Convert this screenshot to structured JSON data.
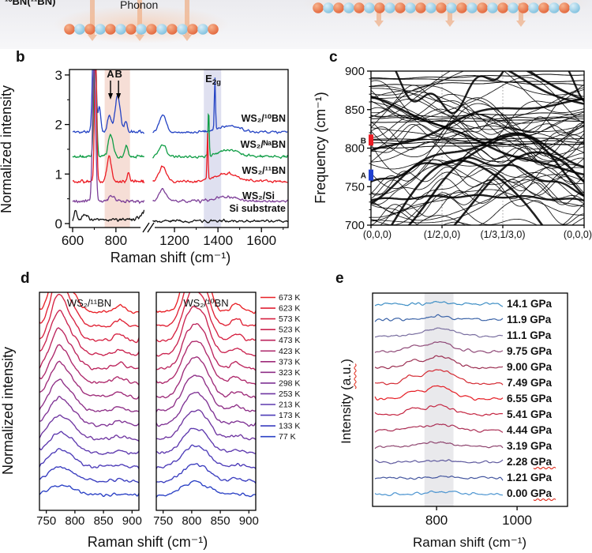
{
  "panel_a": {
    "label": "¹⁰BN(¹¹BN)",
    "phonon_label": "Phonon",
    "colors": {
      "atom_orange": "#e2653a",
      "atom_blue": "#7fc0de",
      "arrow": "#efae85",
      "glow": "#f6b58a",
      "bond": "#9aa4ac",
      "strip_bg": "#ededf1"
    }
  },
  "chart_data": [
    {
      "panel": "b",
      "type": "line",
      "xlabel": "Raman shift (cm⁻¹)",
      "ylabel": "Normalized intensity",
      "xlim": [
        600,
        1720
      ],
      "ylim": [
        0,
        3.15
      ],
      "x_ticks": [
        600,
        800,
        1200,
        1400,
        1600
      ],
      "x_minor_ticks": [
        700,
        1100,
        1300,
        1500,
        1700
      ],
      "y_ticks": [
        0,
        1,
        2,
        3
      ],
      "x_break": [
        950,
        1080
      ],
      "noise": 0.08,
      "shaded_bands": [
        {
          "x0": 748,
          "x1": 865,
          "color": "#f6ded6"
        },
        {
          "x0": 1335,
          "x1": 1415,
          "color": "#dfe0f0"
        }
      ],
      "annotations": {
        "a": {
          "text": "A",
          "x": 775
        },
        "b": {
          "text": "B",
          "x": 812
        },
        "e2g": {
          "main": "E",
          "sub": "2g",
          "x": 1378
        }
      },
      "series": [
        {
          "name": "WS₂/¹⁰BN",
          "color": "#2443c4",
          "offset": 1.85,
          "peaks": [
            [
              700,
              2.6,
              7
            ],
            [
              724,
              0.5,
              6
            ],
            [
              770,
              0.32,
              9
            ],
            [
              808,
              0.72,
              12
            ],
            [
              846,
              0.22,
              6
            ],
            [
              1146,
              0.33,
              16
            ],
            [
              1386,
              1.05,
              2.5
            ],
            [
              1452,
              0.13,
              50
            ]
          ]
        },
        {
          "name": "WS₂/ᴺᵃBN",
          "color": "#0f9d45",
          "offset": 1.35,
          "peaks": [
            [
              704,
              2.4,
              6
            ],
            [
              776,
              0.45,
              11
            ],
            [
              849,
              0.22,
              7
            ],
            [
              1146,
              0.25,
              16
            ],
            [
              1357,
              1.0,
              2.5
            ],
            [
              1452,
              0.13,
              50
            ]
          ]
        },
        {
          "name": "WS₂/¹¹BN",
          "color": "#ec1c24",
          "offset": 0.85,
          "peaks": [
            [
              706,
              2.6,
              5
            ],
            [
              769,
              0.52,
              10
            ],
            [
              858,
              0.16,
              6
            ],
            [
              1146,
              0.3,
              16
            ],
            [
              1352,
              0.95,
              2.3
            ],
            [
              1440,
              0.16,
              50
            ]
          ]
        },
        {
          "name": "WS₂/Si",
          "color": "#7d3f98",
          "offset": 0.45,
          "peaks": [
            [
              699,
              2.8,
              7
            ],
            [
              782,
              0.12,
              14
            ],
            [
              1146,
              0.24,
              16
            ],
            [
              1440,
              0.09,
              50
            ]
          ]
        },
        {
          "name": "Si substrate",
          "color": "#111111",
          "offset": 0.08,
          "offset_right": 0.05,
          "peaks": [
            [
              613,
              0.2,
              5
            ],
            [
              660,
              0.1,
              12
            ],
            [
              952,
              0.22,
              28
            ]
          ]
        }
      ]
    },
    {
      "panel": "c",
      "type": "line",
      "description": "calculated phonon band structure, dense overlapping branches 700-900 cm⁻¹",
      "ylabel": "Frequency (cm⁻¹)",
      "ylim": [
        700,
        900
      ],
      "y_ticks": [
        700,
        750,
        800,
        850,
        900
      ],
      "k_labels": [
        "(0,0,0)",
        "(1/2,0,0)",
        "(1/3,1/3,0)",
        "(0,0,0)"
      ],
      "markers": [
        {
          "text": "B",
          "freq": 810.5,
          "color": "#ec1c24"
        },
        {
          "text": "A",
          "freq": 765,
          "color": "#2040d0"
        }
      ],
      "band_seed": 7,
      "n_random_bands": 45,
      "flat_band_freqs": [
        803,
        806,
        809,
        812,
        835,
        839,
        843,
        883,
        888,
        893
      ]
    },
    {
      "panel": "d",
      "type": "line",
      "xlabel": "Raman shift (cm⁻¹)",
      "ylabel": "Normalized intensity",
      "xlim": [
        738,
        912
      ],
      "x_ticks": [
        750,
        800,
        850,
        900
      ],
      "subpanels": [
        {
          "title": "WS₂/¹¹BN",
          "peaks": [
            [
              772,
              1.0,
              13
            ],
            [
              800,
              0.25,
              10
            ],
            [
              878,
              0.13,
              8
            ]
          ]
        },
        {
          "title": "WS₂/¹⁰BN",
          "peaks": [
            [
              794,
              0.75,
              12
            ],
            [
              818,
              0.85,
              13
            ],
            [
              878,
              0.15,
              8
            ]
          ]
        }
      ],
      "temperatures_K": [
        673,
        623,
        573,
        523,
        473,
        423,
        373,
        323,
        298,
        253,
        213,
        173,
        133,
        77
      ],
      "legend_labels": [
        "673 K",
        "623 K",
        "573 K",
        "523 K",
        "473 K",
        "423 K",
        "373 K",
        "323 K",
        "298 K",
        "253 K",
        "213 K",
        "173 K",
        "133 K",
        "77 K"
      ],
      "colors": [
        "#e82127",
        "#e02134",
        "#d62242",
        "#ca234f",
        "#bc255d",
        "#ae286b",
        "#9e2b79",
        "#8e2f87",
        "#7f3294",
        "#6f36a1",
        "#5d38ae",
        "#4c3bb8",
        "#3a3dbf",
        "#2a40c5"
      ]
    },
    {
      "panel": "e",
      "type": "line",
      "xlabel": "Raman shift (cm⁻¹)",
      "ylabel": "Intensity (a.u.)",
      "ylabel_squiggle": true,
      "xlim": [
        640,
        1125
      ],
      "x_ticks": [
        800,
        1000
      ],
      "shaded_band": {
        "x0": 770,
        "x1": 842,
        "color": "#e9e9ec"
      },
      "squiggle_color": "#e03020",
      "pressures": [
        {
          "label": "14.1 GPa",
          "color": "#3f8fc5",
          "amp": 2,
          "squiggle": false
        },
        {
          "label": "11.9 GPa",
          "color": "#3c64a8",
          "amp": 5,
          "squiggle": false
        },
        {
          "label": "11.1 GPa",
          "color": "#7a6fa0",
          "amp": 9,
          "squiggle": false
        },
        {
          "label": "9.75 GPa",
          "color": "#8f4a78",
          "amp": 12,
          "squiggle": false
        },
        {
          "label": "9.00 GPa",
          "color": "#9c2f52",
          "amp": 14,
          "squiggle": false
        },
        {
          "label": "7.49 GPa",
          "color": "#d42a33",
          "amp": 17,
          "squiggle": false
        },
        {
          "label": "6.55 GPa",
          "color": "#e61e25",
          "amp": 16,
          "squiggle": false
        },
        {
          "label": "5.41 GPa",
          "color": "#c42440",
          "amp": 12,
          "squiggle": false
        },
        {
          "label": "4.44 GPa",
          "color": "#ab2f55",
          "amp": 8,
          "squiggle": false
        },
        {
          "label": "3.19 GPa",
          "color": "#8f4670",
          "amp": 5,
          "squiggle": false
        },
        {
          "label": "2.28 GPa",
          "color": "#5f5a9e",
          "amp": 3,
          "squiggle": true
        },
        {
          "label": "1.21 GPa",
          "color": "#44569f",
          "amp": 2,
          "squiggle": false
        },
        {
          "label": "0.00 GPa",
          "color": "#4b94d0",
          "amp": 2,
          "squiggle": true
        }
      ]
    }
  ]
}
